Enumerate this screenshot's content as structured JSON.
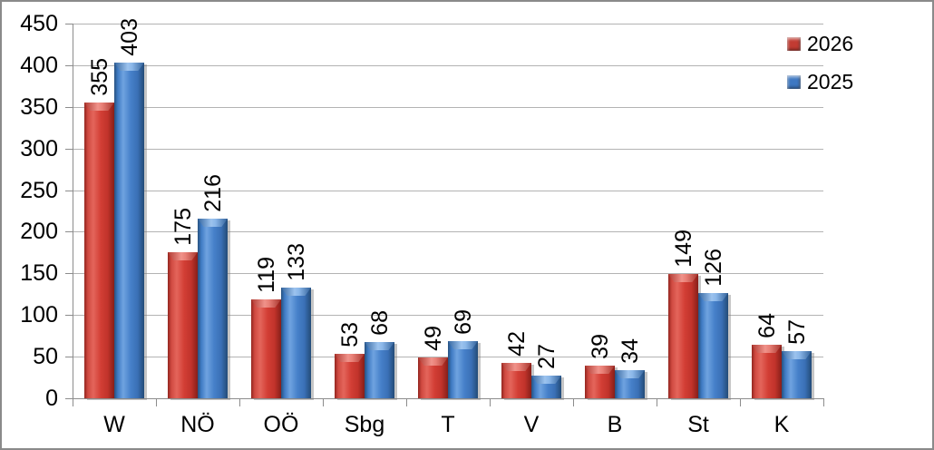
{
  "chart_data": {
    "type": "bar",
    "title": "",
    "categories": [
      "W",
      "NÖ",
      "OÖ",
      "Sbg",
      "T",
      "V",
      "B",
      "St",
      "K"
    ],
    "series": [
      {
        "name": "2026",
        "color": "#c23b32",
        "values": [
          355,
          175,
          119,
          53,
          49,
          42,
          39,
          149,
          64
        ]
      },
      {
        "name": "2025",
        "color": "#3e78c2",
        "values": [
          403,
          216,
          133,
          68,
          69,
          27,
          34,
          126,
          57
        ]
      }
    ],
    "ylim": [
      0,
      450
    ],
    "y_ticks": [
      0,
      50,
      100,
      150,
      200,
      250,
      300,
      350,
      400,
      450
    ],
    "grid": true,
    "legend_position": "top-right",
    "value_label_style": "rotated-vertical-outside-end",
    "bar_style": "3d-beveled"
  },
  "colors": {
    "grid": "#b3b3b3",
    "axis": "#8c8c8c",
    "text": "#000000",
    "chart_border": "#8a8a8a",
    "background": "#ffffff"
  }
}
